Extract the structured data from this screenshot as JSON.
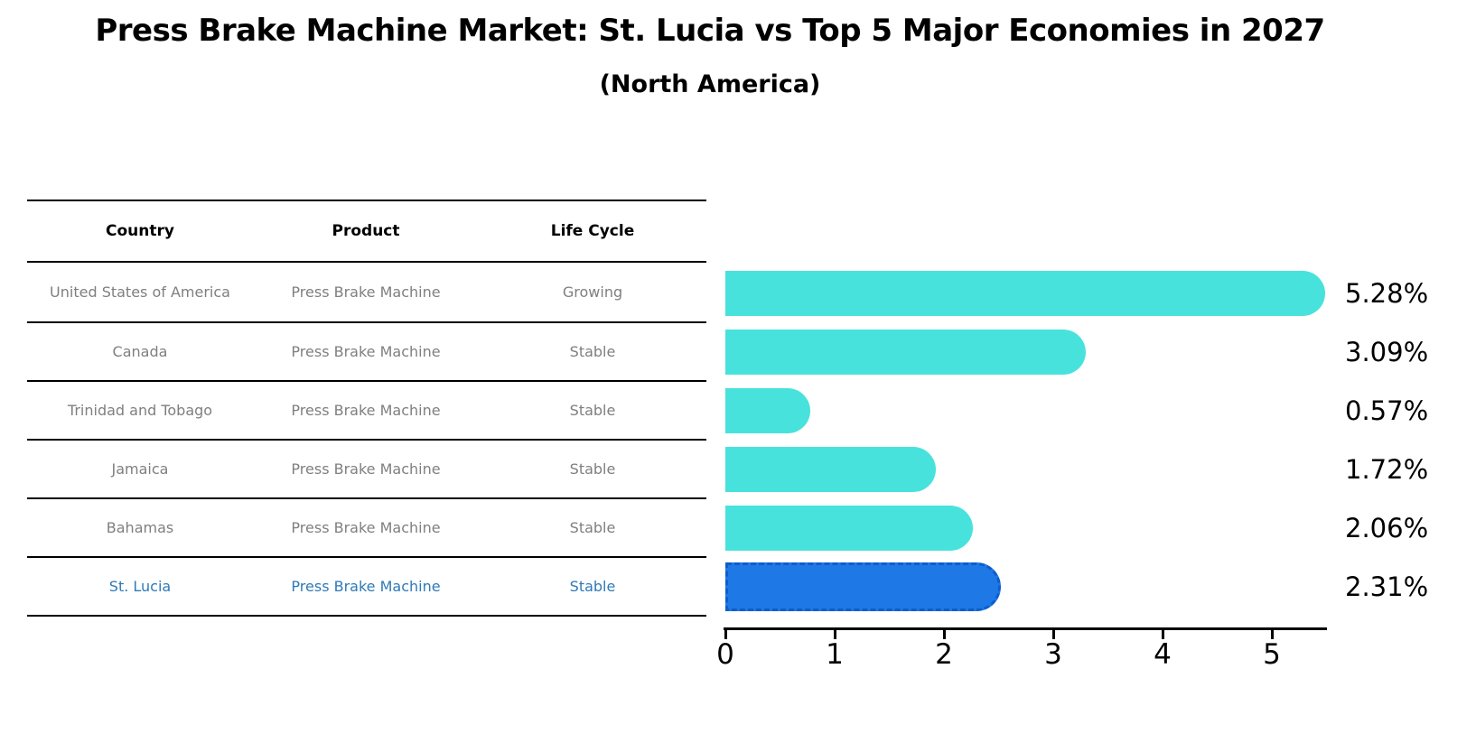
{
  "title": "Press Brake Machine Market: St. Lucia vs Top 5 Major Economies in 2027",
  "subtitle": "(North America)",
  "table": {
    "headers": [
      "Country",
      "Product",
      "Life Cycle"
    ],
    "rows": [
      {
        "country": "United States of America",
        "product": "Press Brake Machine",
        "life_cycle": "Growing",
        "highlighted": false
      },
      {
        "country": "Canada",
        "product": "Press Brake Machine",
        "life_cycle": "Stable",
        "highlighted": false
      },
      {
        "country": "Trinidad and Tobago",
        "product": "Press Brake Machine",
        "life_cycle": "Stable",
        "highlighted": false
      },
      {
        "country": "Jamaica",
        "product": "Press Brake Machine",
        "life_cycle": "Stable",
        "highlighted": false
      },
      {
        "country": "Bahamas",
        "product": "Press Brake Machine",
        "life_cycle": "Stable",
        "highlighted": false
      },
      {
        "country": "St. Lucia",
        "product": "Press Brake Machine",
        "life_cycle": "Stable",
        "highlighted": true
      }
    ]
  },
  "chart_data": {
    "type": "bar",
    "orientation": "horizontal",
    "title": "Press Brake Machine Market: St. Lucia vs Top 5 Major Economies in 2027",
    "subtitle": "(North America)",
    "categories": [
      "United States of America",
      "Canada",
      "Trinidad and Tobago",
      "Jamaica",
      "Bahamas",
      "St. Lucia"
    ],
    "values": [
      5.28,
      3.09,
      0.57,
      1.72,
      2.06,
      2.31
    ],
    "value_labels": [
      "5.28%",
      "3.09%",
      "0.57%",
      "1.72%",
      "2.06%",
      "2.31%"
    ],
    "xticks": [
      0,
      1,
      2,
      3,
      4,
      5
    ],
    "xlim": [
      0,
      5.5
    ],
    "xlabel": "",
    "ylabel": "",
    "grid": false,
    "legend": false,
    "bar_color": "#48e2dc",
    "highlight_color": "#1e78e6",
    "highlight_index": 5,
    "highlight_text_color": "#2e7ab8"
  }
}
